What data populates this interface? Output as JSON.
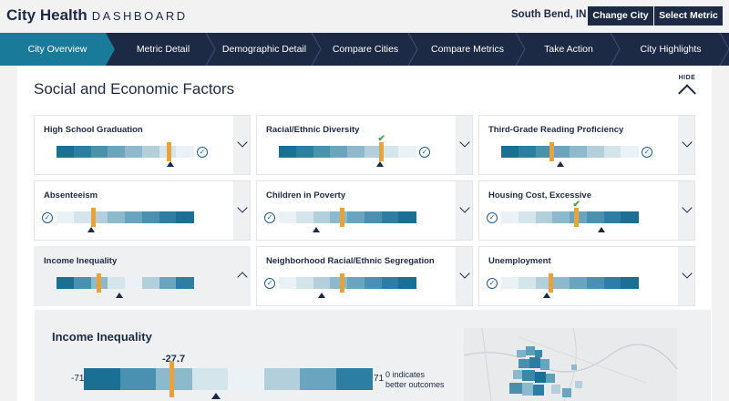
{
  "header": {
    "logo_main": "City Health",
    "logo_sub": "DASHBOARD",
    "city": "South Bend, IN",
    "change_city": "Change City",
    "select_metric": "Select Metric"
  },
  "nav": [
    {
      "label": "City Overview",
      "active": true
    },
    {
      "label": "Metric Detail",
      "active": false
    },
    {
      "label": "Demographic Detail",
      "active": false
    },
    {
      "label": "Compare Cities",
      "active": false
    },
    {
      "label": "Compare Metrics",
      "active": false
    },
    {
      "label": "Take Action",
      "active": false
    },
    {
      "label": "City Highlights",
      "active": false
    }
  ],
  "section": {
    "title": "Social and Economic Factors",
    "hide_label": "HIDE"
  },
  "colors": {
    "navy": "#1d2a45",
    "nav_active": "#1a7a9a",
    "marker": "#e9a23b",
    "check_green": "#4aa33d",
    "scale": [
      "#1a6f94",
      "#2c7fa2",
      "#4a90b0",
      "#6aa5bf",
      "#8db9cd",
      "#b3cfdc",
      "#d5e5ec",
      "#eaf2f6"
    ]
  },
  "metrics": [
    {
      "title": "High School Graduation",
      "direction": "desc",
      "marker": 0.82,
      "avg": 0.83,
      "check_side": "right",
      "best_check": false,
      "expanded": false
    },
    {
      "title": "Racial/Ethnic Diversity",
      "direction": "desc",
      "marker": 0.75,
      "avg": 0.74,
      "check_side": "right",
      "best_check": true,
      "expanded": false
    },
    {
      "title": "Third-Grade Reading Proficiency",
      "direction": "desc",
      "marker": 0.37,
      "avg": 0.43,
      "check_side": "right",
      "best_check": false,
      "expanded": false
    },
    {
      "title": "Absenteeism",
      "direction": "asc",
      "marker": 0.27,
      "avg": 0.25,
      "check_side": "left",
      "best_check": false,
      "expanded": false
    },
    {
      "title": "Children in Poverty",
      "direction": "asc",
      "marker": 0.46,
      "avg": 0.27,
      "check_side": "left",
      "best_check": false,
      "expanded": false
    },
    {
      "title": "Housing Cost, Excessive",
      "direction": "asc",
      "marker": 0.55,
      "avg": 0.73,
      "check_side": "left",
      "best_check": true,
      "expanded": false
    },
    {
      "title": "Income Inequality",
      "direction": "mid",
      "marker": 0.31,
      "avg": 0.46,
      "check_side": "none",
      "best_check": false,
      "expanded": true
    },
    {
      "title": "Neighborhood Racial/Ethnic Segregation",
      "direction": "asc",
      "marker": 0.46,
      "avg": 0.31,
      "check_side": "left",
      "best_check": false,
      "expanded": false
    },
    {
      "title": "Unemployment",
      "direction": "asc",
      "marker": 0.36,
      "avg": 0.33,
      "check_side": "left",
      "best_check": false,
      "expanded": false
    }
  ],
  "detail": {
    "title": "Income Inequality",
    "min": "-71",
    "max": "71",
    "value": "-27.7",
    "value_fraction": 0.305,
    "avg_fraction": 0.46,
    "note_line1": "0 indicates",
    "note_line2": "better outcomes"
  }
}
